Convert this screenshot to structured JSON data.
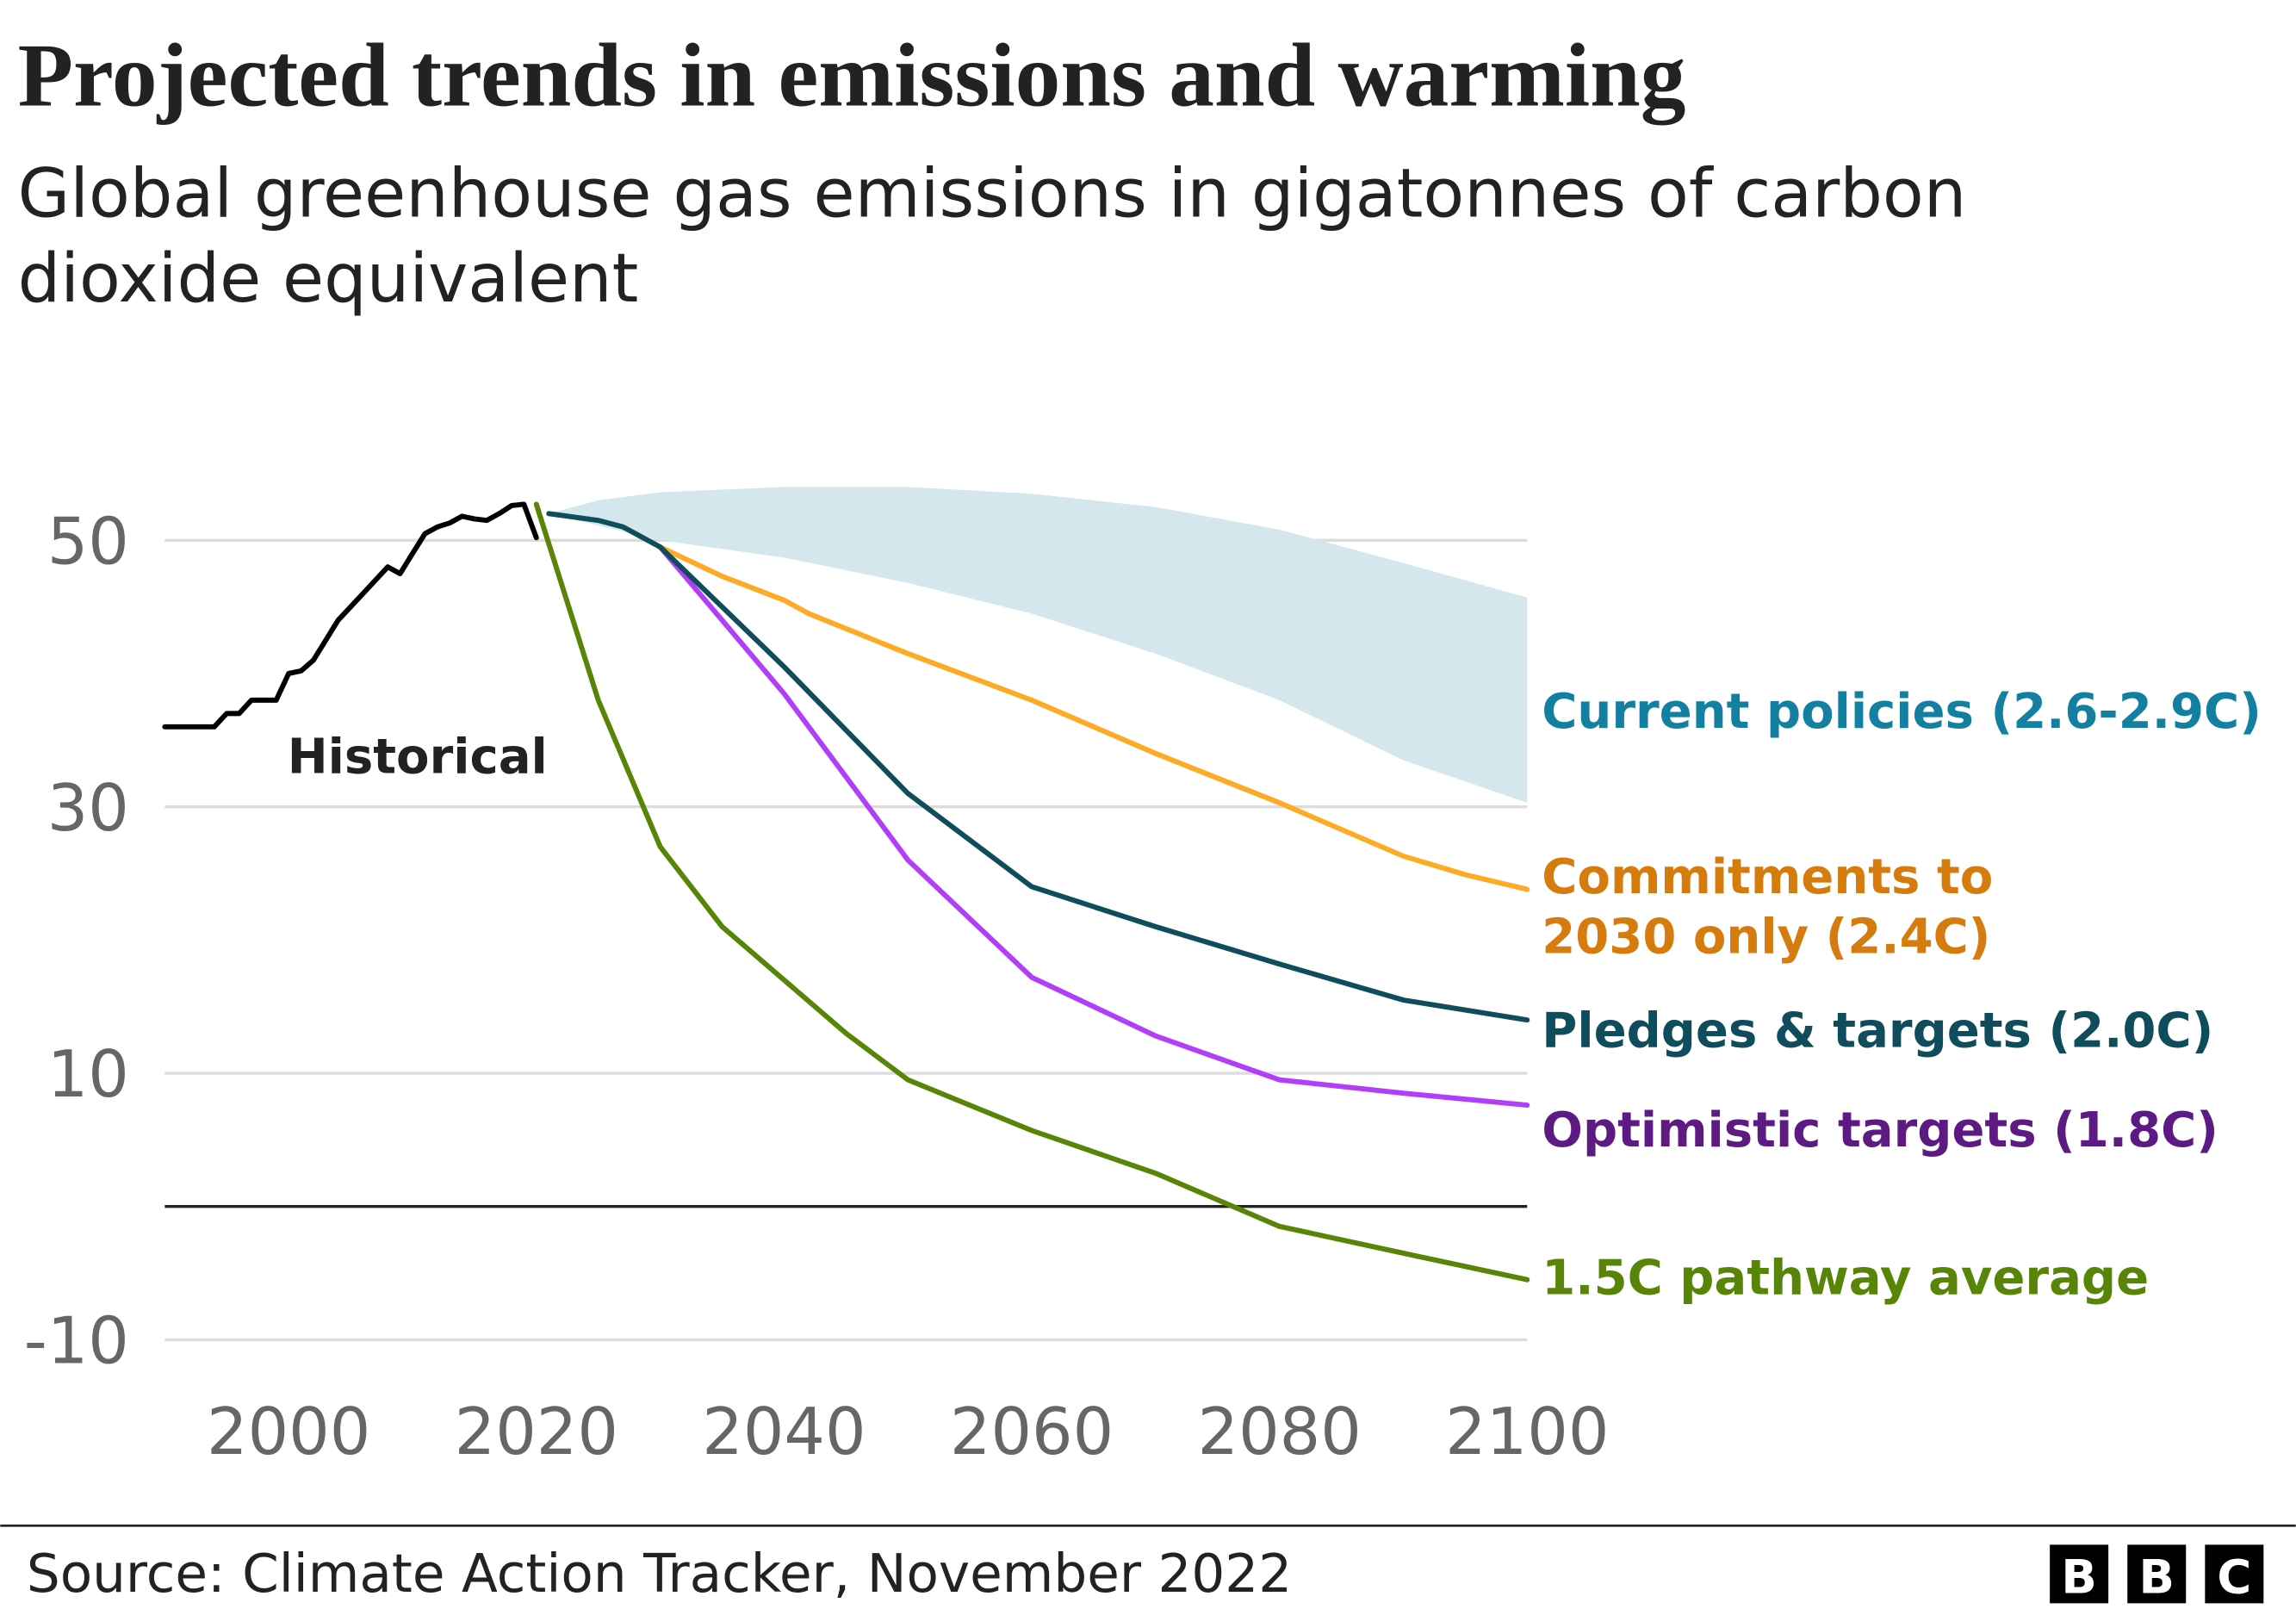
{
  "title": "Projected trends in emissions and warming",
  "subtitle_line1": "Global greenhouse gas emissions in gigatonnes of carbon",
  "subtitle_line2": "dioxide equivalent",
  "source": "Source: Climate Action Tracker, November 2022",
  "logo": "BBC",
  "chart_data": {
    "type": "line",
    "xlim": [
      1990,
      2100
    ],
    "ylim": [
      -12,
      55
    ],
    "x_ticks": [
      2000,
      2020,
      2040,
      2060,
      2080,
      2100
    ],
    "x_tick_labels": [
      "2000",
      "2020",
      "2040",
      "2060",
      "2080",
      "2100"
    ],
    "y_ticks": [
      50,
      30,
      10,
      -10
    ],
    "y_tick_labels": [
      "50",
      "30",
      "10",
      "-10"
    ],
    "grid": true,
    "zero_line": true,
    "series": [
      {
        "name": "Historical",
        "color": "#000000",
        "points": [
          [
            1990,
            36
          ],
          [
            1994,
            36
          ],
          [
            1995,
            37
          ],
          [
            1996,
            37
          ],
          [
            1997,
            38
          ],
          [
            1999,
            38
          ],
          [
            2000,
            40
          ],
          [
            2001,
            40.2
          ],
          [
            2002,
            41
          ],
          [
            2004,
            44
          ],
          [
            2006,
            46
          ],
          [
            2008,
            48
          ],
          [
            2009,
            47.5
          ],
          [
            2010,
            49
          ],
          [
            2011,
            50.5
          ],
          [
            2012,
            51
          ],
          [
            2013,
            51.3
          ],
          [
            2014,
            51.8
          ],
          [
            2015,
            51.6
          ],
          [
            2016,
            51.5
          ],
          [
            2017,
            52
          ],
          [
            2018,
            52.6
          ],
          [
            2019,
            52.7
          ],
          [
            2020,
            50.2
          ]
        ]
      },
      {
        "name": "Current policies (2.6-2.9C)",
        "type": "band",
        "color": "#d3e7ec",
        "label_color": "#1380a1",
        "upper": [
          [
            2021,
            52
          ],
          [
            2025,
            53
          ],
          [
            2030,
            53.6
          ],
          [
            2040,
            54
          ],
          [
            2050,
            54
          ],
          [
            2060,
            53.5
          ],
          [
            2070,
            52.5
          ],
          [
            2080,
            50.8
          ],
          [
            2090,
            48.3
          ],
          [
            2100,
            45.7
          ]
        ],
        "lower": [
          [
            2021,
            52
          ],
          [
            2030,
            50
          ],
          [
            2040,
            48.7
          ],
          [
            2050,
            46.8
          ],
          [
            2060,
            44.5
          ],
          [
            2070,
            41.5
          ],
          [
            2080,
            38
          ],
          [
            2090,
            33.5
          ],
          [
            2100,
            30.3
          ]
        ]
      },
      {
        "name": "Commitments to 2030 only (2.4C)",
        "label_lines": [
          "Commitments to",
          "2030 only (2.4C)"
        ],
        "color": "#fdaa25",
        "label_color": "#d67b0d",
        "points": [
          [
            2030,
            49.5
          ],
          [
            2035,
            47.3
          ],
          [
            2040,
            45.5
          ],
          [
            2042,
            44.5
          ],
          [
            2050,
            41.5
          ],
          [
            2060,
            38
          ],
          [
            2070,
            34
          ],
          [
            2080,
            30.3
          ],
          [
            2090,
            26.3
          ],
          [
            2095,
            24.9
          ],
          [
            2100,
            23.8
          ]
        ]
      },
      {
        "name": "Optimistic targets (1.8C)",
        "color": "#b13ef8",
        "label_color": "#5c1a82",
        "points": [
          [
            2030,
            49.5
          ],
          [
            2035,
            44
          ],
          [
            2040,
            38.5
          ],
          [
            2050,
            26
          ],
          [
            2060,
            17.2
          ],
          [
            2070,
            12.8
          ],
          [
            2080,
            9.5
          ],
          [
            2090,
            8.5
          ],
          [
            2100,
            7.6
          ]
        ]
      },
      {
        "name": "Pledges & targets (2.0C)",
        "color": "#0f4c5c",
        "label_color": "#0f4c5c",
        "points": [
          [
            2021,
            52
          ],
          [
            2025,
            51.5
          ],
          [
            2027,
            51
          ],
          [
            2030,
            49.5
          ],
          [
            2040,
            40.5
          ],
          [
            2050,
            31
          ],
          [
            2060,
            24
          ],
          [
            2070,
            21
          ],
          [
            2080,
            18.2
          ],
          [
            2090,
            15.5
          ],
          [
            2100,
            14
          ]
        ]
      },
      {
        "name": "1.5C pathway average",
        "color": "#588507",
        "label_color": "#588507",
        "points": [
          [
            2020,
            52.7
          ],
          [
            2025,
            38
          ],
          [
            2030,
            27
          ],
          [
            2035,
            21
          ],
          [
            2040,
            17
          ],
          [
            2045,
            13
          ],
          [
            2050,
            9.5
          ],
          [
            2060,
            5.7
          ],
          [
            2070,
            2.5
          ],
          [
            2080,
            -1.5
          ],
          [
            2090,
            -3.5
          ],
          [
            2100,
            -5.5
          ]
        ]
      }
    ]
  }
}
